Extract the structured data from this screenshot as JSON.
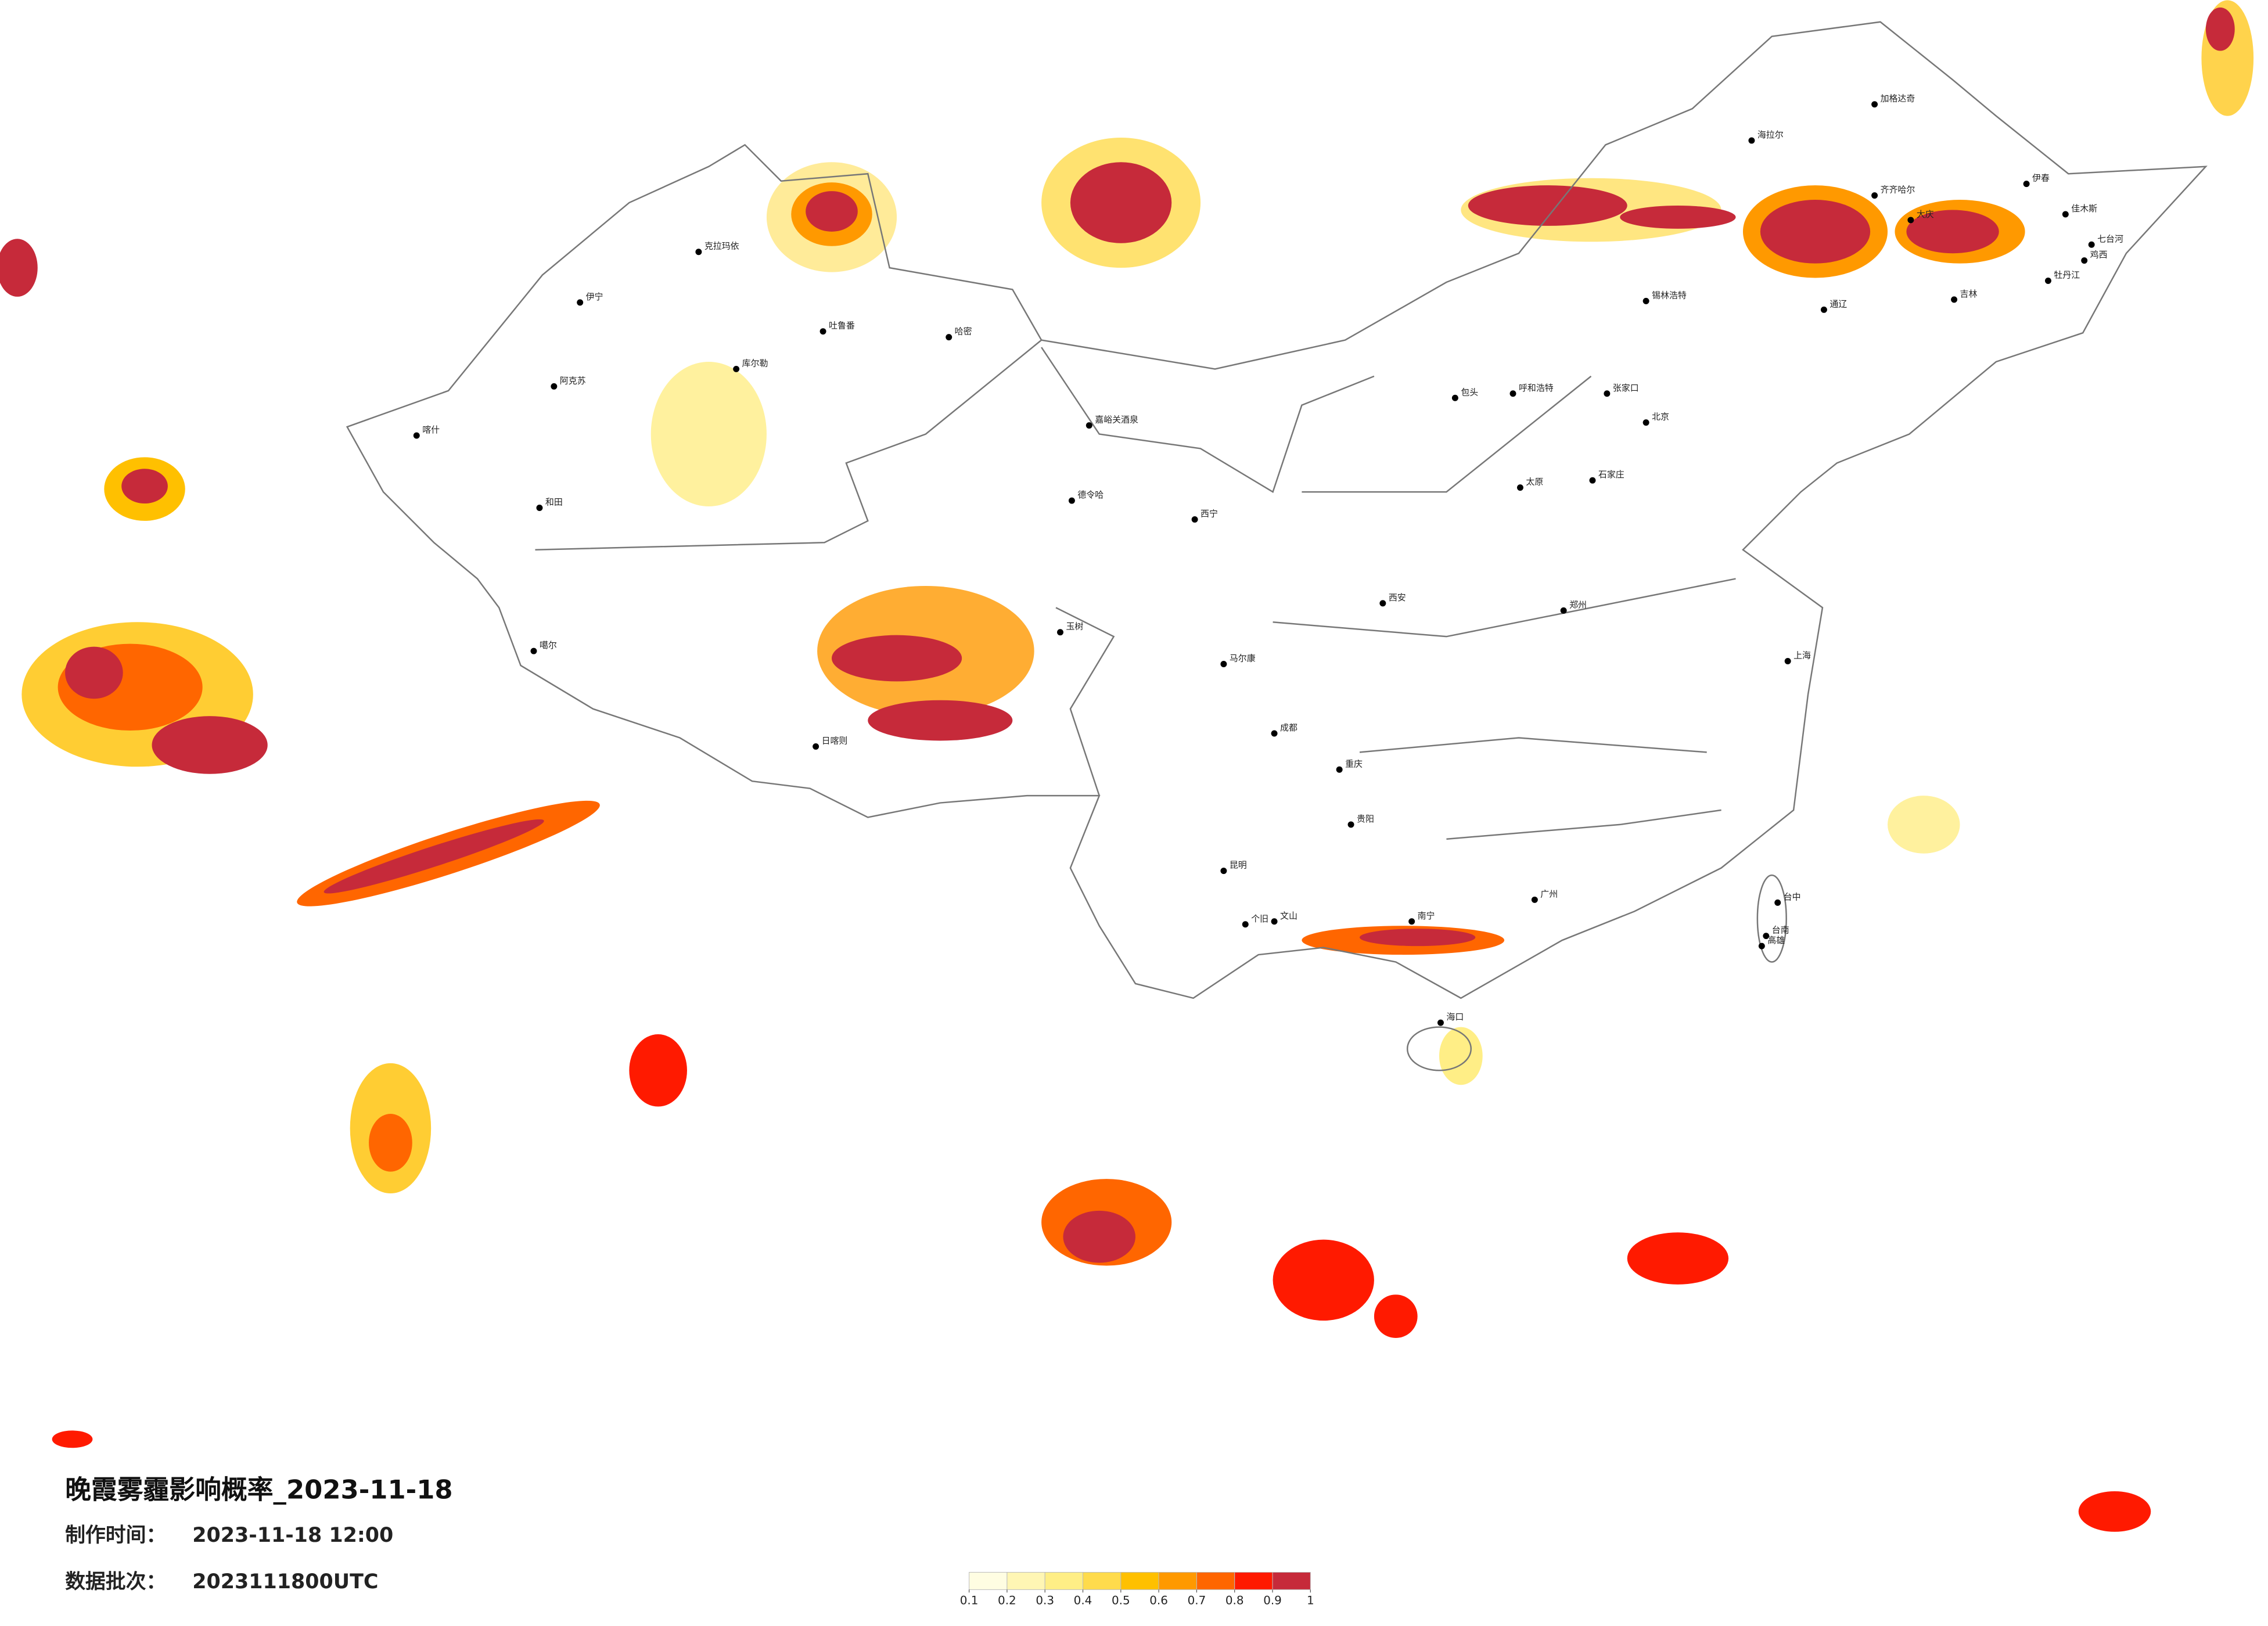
{
  "title": "晚霞雾霾影响概率_2023-11-18",
  "made_label": "制作时间：",
  "made_time": "2023-11-18 12:00",
  "batch_label": "数据批次：",
  "batch": "2023111800UTC",
  "colorbar": {
    "ticks": [
      0.1,
      0.2,
      0.3,
      0.4,
      0.5,
      0.6,
      0.7,
      0.8,
      0.9,
      1
    ],
    "colors": [
      "#fffde2",
      "#fff6b4",
      "#ffee86",
      "#ffdb4c",
      "#ffc000",
      "#ff9900",
      "#ff6600",
      "#ff1a00",
      "#c62a3a"
    ]
  },
  "cities": [
    "克拉玛依",
    "伊宁",
    "阿克苏",
    "和田",
    "喀什",
    "哈密",
    "吐鲁番",
    "库尔勒",
    "嘉峪关酒泉",
    "德令哈",
    "日喀则",
    "噶尔",
    "玉树",
    "马尔康",
    "海拉尔",
    "加格达奇",
    "齐齐哈尔",
    "大庆",
    "伊春",
    "佳木斯",
    "七台河",
    "鸡西",
    "牡丹江",
    "吉林",
    "通辽",
    "锡林浩特",
    "呼和浩特",
    "包头",
    "张家口",
    "北京",
    "石家庄",
    "太原",
    "郑州",
    "西安",
    "成都",
    "重庆",
    "贵阳",
    "昆明",
    "南宁",
    "广州",
    "台中",
    "台南",
    "高雄",
    "海口",
    "个旧",
    "文山",
    "西宁",
    "上海"
  ]
}
